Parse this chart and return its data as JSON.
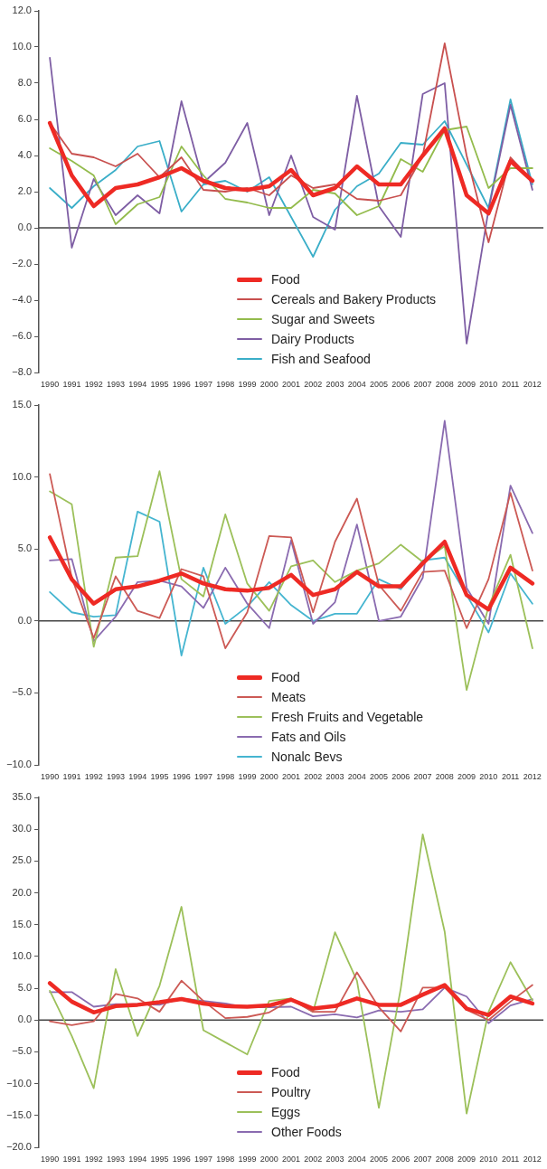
{
  "chart_data": [
    {
      "type": "line",
      "categories": [
        "1990",
        "1991",
        "1992",
        "1993",
        "1994",
        "1995",
        "1996",
        "1997",
        "1998",
        "1999",
        "2000",
        "2001",
        "2002",
        "2003",
        "2004",
        "2005",
        "2006",
        "2007",
        "2008",
        "2009",
        "2010",
        "2011",
        "2012"
      ],
      "ref_lines": [
        {
          "axis": "y",
          "value": 0
        }
      ],
      "ylim": [
        -8,
        12
      ],
      "yticks": [
        {
          "value": -8,
          "label": "−8.0"
        },
        {
          "value": -6,
          "label": "−6.0"
        },
        {
          "value": -4,
          "label": "−4.0"
        },
        {
          "value": -2,
          "label": "−2.0"
        },
        {
          "value": 0,
          "label": "0.0"
        },
        {
          "value": 2,
          "label": "2.0"
        },
        {
          "value": 4,
          "label": "4.0"
        },
        {
          "value": 6,
          "label": "6.0"
        },
        {
          "value": 8,
          "label": "8.0"
        },
        {
          "value": 10,
          "label": "10.0"
        },
        {
          "value": 12,
          "label": "12.0"
        }
      ],
      "grid": false,
      "legend": "bottom",
      "marker": "none",
      "series": [
        {
          "name": "Food",
          "color": "#ee2a24",
          "values": [
            5.8,
            2.9,
            1.2,
            2.2,
            2.4,
            2.8,
            3.3,
            2.6,
            2.2,
            2.1,
            2.3,
            3.2,
            1.8,
            2.2,
            3.4,
            2.4,
            2.4,
            4.0,
            5.5,
            1.8,
            0.8,
            3.7,
            2.6
          ]
        },
        {
          "name": "Cereals and Bakery Products",
          "color": "#c8504f",
          "values": [
            5.8,
            4.1,
            3.9,
            3.4,
            4.1,
            2.8,
            3.9,
            2.1,
            2.0,
            2.2,
            1.8,
            2.9,
            2.2,
            2.4,
            1.6,
            1.5,
            1.8,
            4.0,
            10.2,
            4.0,
            -0.8,
            3.9,
            2.6
          ]
        },
        {
          "name": "Sugar and Sweets",
          "color": "#93bb4c",
          "values": [
            4.4,
            3.7,
            2.9,
            0.2,
            1.3,
            1.7,
            4.5,
            2.9,
            1.6,
            1.4,
            1.1,
            1.1,
            2.1,
            1.9,
            0.7,
            1.2,
            3.8,
            3.1,
            5.4,
            5.6,
            2.2,
            3.3,
            3.3
          ]
        },
        {
          "name": "Dairy Products",
          "color": "#7e5ea4",
          "values": [
            9.4,
            -1.1,
            2.7,
            0.7,
            1.8,
            0.8,
            7.0,
            2.5,
            3.6,
            5.8,
            0.7,
            4.0,
            0.6,
            -0.1,
            7.3,
            1.2,
            -0.5,
            7.4,
            8.0,
            -6.4,
            1.0,
            6.8,
            2.1
          ]
        },
        {
          "name": "Fish and Seafood",
          "color": "#3aaec8",
          "values": [
            2.2,
            1.1,
            2.3,
            3.2,
            4.5,
            4.8,
            0.9,
            2.4,
            2.6,
            2.0,
            2.8,
            0.6,
            -1.6,
            1.0,
            2.3,
            3.0,
            4.7,
            4.6,
            5.9,
            3.5,
            1.1,
            7.1,
            2.4
          ]
        }
      ]
    },
    {
      "type": "line",
      "categories": [
        "1990",
        "1991",
        "1992",
        "1993",
        "1994",
        "1995",
        "1996",
        "1997",
        "1998",
        "1999",
        "2000",
        "2001",
        "2002",
        "2003",
        "2004",
        "2005",
        "2006",
        "2007",
        "2008",
        "2009",
        "2010",
        "2011",
        "2012"
      ],
      "ref_lines": [
        {
          "axis": "y",
          "value": 0
        }
      ],
      "ylim": [
        -10,
        15
      ],
      "yticks": [
        {
          "value": -10,
          "label": "−10.0"
        },
        {
          "value": -5,
          "label": "−5.0"
        },
        {
          "value": 0,
          "label": "0.0"
        },
        {
          "value": 5,
          "label": "5.0"
        },
        {
          "value": 10,
          "label": "10.0"
        },
        {
          "value": 15,
          "label": "15.0"
        }
      ],
      "grid": false,
      "legend": "bottom",
      "marker": "none",
      "series": [
        {
          "name": "Food",
          "color": "#ee2a24",
          "values": [
            5.8,
            2.9,
            1.2,
            2.2,
            2.4,
            2.8,
            3.3,
            2.6,
            2.2,
            2.1,
            2.3,
            3.2,
            1.8,
            2.2,
            3.4,
            2.4,
            2.4,
            4.0,
            5.5,
            1.8,
            0.8,
            3.7,
            2.6
          ]
        },
        {
          "name": "Meats",
          "color": "#cc5a55",
          "values": [
            10.2,
            3.0,
            -1.2,
            3.1,
            0.7,
            0.2,
            3.6,
            3.1,
            -1.9,
            0.6,
            5.9,
            5.8,
            0.6,
            5.5,
            8.5,
            2.5,
            0.7,
            3.4,
            3.5,
            -0.5,
            2.9,
            8.9,
            3.5
          ]
        },
        {
          "name": "Fresh Fruits and Vegetable",
          "color": "#9cc05a",
          "values": [
            9.0,
            8.1,
            -1.8,
            4.4,
            4.5,
            10.4,
            2.9,
            1.7,
            7.4,
            2.6,
            0.7,
            3.8,
            4.2,
            2.7,
            3.5,
            4.0,
            5.3,
            4.1,
            5.2,
            -4.8,
            1.0,
            4.6,
            -1.9
          ]
        },
        {
          "name": "Fats and Oils",
          "color": "#8a6bb0",
          "values": [
            4.2,
            4.3,
            -1.4,
            0.3,
            2.7,
            2.8,
            2.4,
            0.9,
            3.7,
            1.2,
            -0.5,
            5.6,
            -0.2,
            1.3,
            6.7,
            0.0,
            0.3,
            3.0,
            13.9,
            2.3,
            -0.2,
            9.4,
            6.1
          ]
        },
        {
          "name": "Nonalc Bevs",
          "color": "#45b5d0",
          "values": [
            2.0,
            0.6,
            0.3,
            0.4,
            7.6,
            6.9,
            -2.4,
            3.7,
            -0.2,
            1.0,
            2.7,
            1.1,
            0.0,
            0.5,
            0.5,
            2.9,
            2.2,
            4.2,
            4.4,
            1.8,
            -0.8,
            3.3,
            1.2
          ]
        }
      ]
    },
    {
      "type": "line",
      "categories": [
        "1990",
        "1991",
        "1992",
        "1993",
        "1994",
        "1995",
        "1996",
        "1997",
        "1998",
        "1999",
        "2000",
        "2001",
        "2002",
        "2003",
        "2004",
        "2005",
        "2006",
        "2007",
        "2008",
        "2009",
        "2010",
        "2011",
        "2012"
      ],
      "ref_lines": [
        {
          "axis": "y",
          "value": 0
        }
      ],
      "ylim": [
        -20,
        35
      ],
      "yticks": [
        {
          "value": -20,
          "label": "−20.0"
        },
        {
          "value": -15,
          "label": "−15.0"
        },
        {
          "value": -10,
          "label": "−10.0"
        },
        {
          "value": -5,
          "label": "−5.0"
        },
        {
          "value": 0,
          "label": "0.0"
        },
        {
          "value": 5,
          "label": "5.0"
        },
        {
          "value": 10,
          "label": "10.0"
        },
        {
          "value": 15,
          "label": "15.0"
        },
        {
          "value": 20,
          "label": "20.0"
        },
        {
          "value": 25,
          "label": "25.0"
        },
        {
          "value": 30,
          "label": "30.0"
        },
        {
          "value": 35,
          "label": "35.0"
        }
      ],
      "grid": false,
      "legend": "bottom",
      "marker": "none",
      "series": [
        {
          "name": "Food",
          "color": "#ee2a24",
          "values": [
            5.8,
            2.9,
            1.2,
            2.2,
            2.4,
            2.8,
            3.3,
            2.6,
            2.2,
            2.1,
            2.3,
            3.2,
            1.8,
            2.2,
            3.4,
            2.4,
            2.4,
            4.0,
            5.5,
            1.8,
            0.8,
            3.7,
            2.6
          ]
        },
        {
          "name": "Poultry",
          "color": "#cc5a55",
          "values": [
            -0.2,
            -0.8,
            -0.2,
            4.1,
            3.4,
            1.3,
            6.2,
            3.0,
            0.3,
            0.5,
            1.2,
            3.2,
            1.3,
            1.3,
            7.5,
            2.0,
            -1.8,
            5.1,
            5.1,
            1.6,
            0.0,
            2.9,
            5.5
          ]
        },
        {
          "name": "Eggs",
          "color": "#9cc05a",
          "values": [
            4.6,
            -2.5,
            -10.7,
            8.0,
            -2.5,
            5.4,
            17.8,
            -1.6,
            -3.5,
            -5.4,
            3.0,
            3.4,
            1.3,
            13.8,
            6.2,
            -13.8,
            5.0,
            29.2,
            13.9,
            -14.7,
            1.3,
            9.1,
            3.1
          ]
        },
        {
          "name": "Other Foods",
          "color": "#8a6bb0",
          "values": [
            4.4,
            4.4,
            2.1,
            2.5,
            2.5,
            2.4,
            3.4,
            3.0,
            2.6,
            2.0,
            2.0,
            2.1,
            0.6,
            0.9,
            0.4,
            1.5,
            1.3,
            1.7,
            5.1,
            3.7,
            -0.5,
            2.3,
            3.3
          ]
        }
      ]
    }
  ]
}
